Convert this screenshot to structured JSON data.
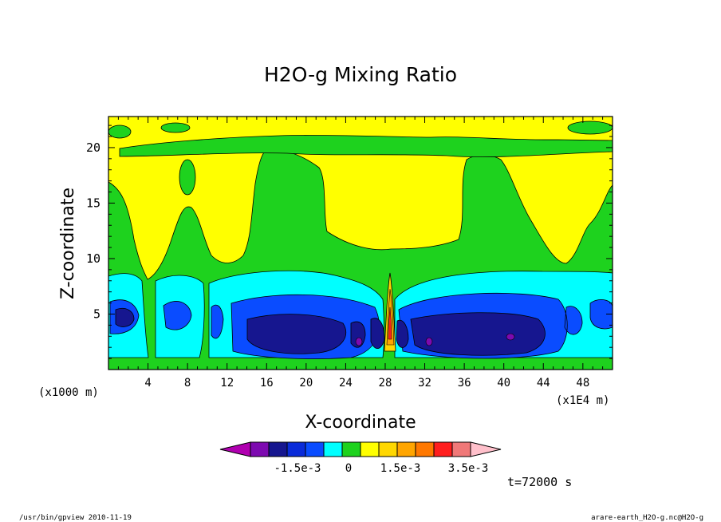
{
  "chart_data": {
    "type": "heatmap",
    "title": "H2O-g Mixing Ratio",
    "xlabel": "X-coordinate",
    "ylabel": "Z-coordinate",
    "x_unit": "(x1E4 m)",
    "y_unit": "(x1000 m)",
    "x_ticks": [
      4,
      8,
      12,
      16,
      20,
      24,
      28,
      32,
      36,
      40,
      44,
      48
    ],
    "y_ticks": [
      5,
      10,
      15,
      20
    ],
    "xlim": [
      0,
      51
    ],
    "ylim": [
      0,
      22.8
    ],
    "colorbar": {
      "labels": [
        "-1.5e-3",
        "0",
        "1.5e-3",
        "3.5e-3"
      ],
      "colors": [
        "#b000b0",
        "#7d0ab0",
        "#16168f",
        "#0a2bd9",
        "#0a4cff",
        "#00ffff",
        "#1ed21e",
        "#ffff00",
        "#ffd700",
        "#ffa500",
        "#ff7800",
        "#ff1e1e",
        "#f07878",
        "#ffc0cb"
      ]
    },
    "time_label": "t=72000 s"
  },
  "footer": {
    "left": "/usr/bin/gpview   2010-11-19",
    "right": "arare-earth_H2O-g.nc@H2O-g"
  }
}
